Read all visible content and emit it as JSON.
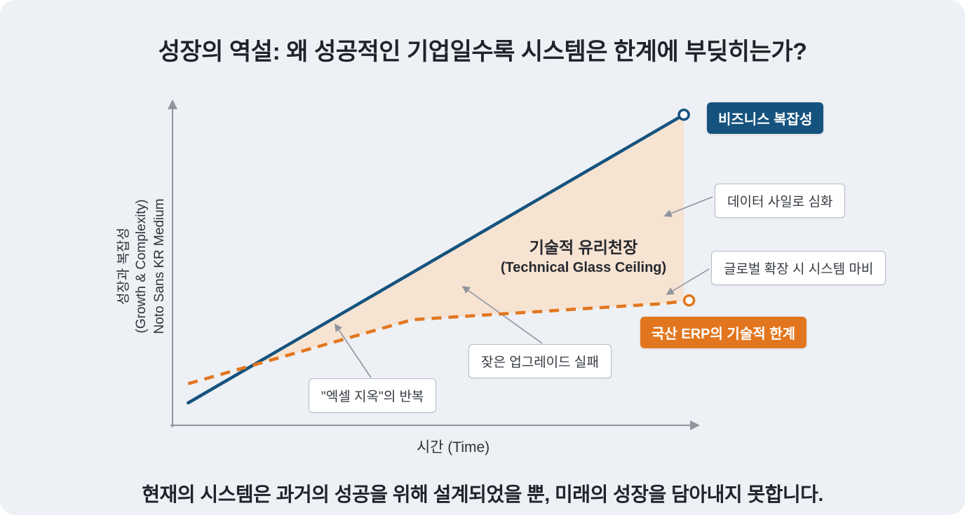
{
  "title": "성장의 역설: 왜 성공적인 기업일수록 시스템은 한계에 부딪히는가?",
  "footer": "현재의 시스템은 과거의 성공을 위해 설계되었을 뿐, 미래의 성장을 담아내지 못합니다.",
  "colors": {
    "background": "#edf0f4",
    "business_line": "#15537e",
    "erp_line": "#e2761e",
    "gap_fill": "#f7e2d0",
    "axis": "#8f959d",
    "callout_border": "#b6bcc4"
  },
  "chart_data": {
    "type": "line",
    "title": "",
    "xlabel": "시간 (Time)",
    "ylabel_lines": [
      "성장과 복잡성",
      "(Growth & Complexity)",
      "Noto Sans KR Medium"
    ],
    "x_range": [
      0,
      100
    ],
    "y_range": [
      0,
      100
    ],
    "grid": false,
    "legend_position": "inline-badges",
    "series": [
      {
        "name": "비즈니스 복잡성",
        "color": "#15537e",
        "line_style": "solid",
        "marker": "open-circle",
        "points": [
          [
            3,
            7
          ],
          [
            98,
            97
          ]
        ]
      },
      {
        "name": "국산 ERP의 기술적 한계",
        "color": "#e2761e",
        "line_style": "dashed",
        "marker": "open-circle",
        "points": [
          [
            3,
            13
          ],
          [
            46,
            33
          ],
          [
            94,
            38
          ],
          [
            99,
            39
          ]
        ]
      }
    ],
    "gap_area": {
      "label": "기술적 유리천장",
      "sublabel": "(Technical Glass Ceiling)",
      "fill": "#f7e2d0"
    },
    "annotations": [
      {
        "label": "데이터 사일로 심화"
      },
      {
        "label": "글로벌 확장 시 시스템 마비"
      },
      {
        "label": "잦은 업그레이드 실패"
      },
      {
        "label": "\"엑셀 지옥\"의 반복"
      }
    ]
  }
}
